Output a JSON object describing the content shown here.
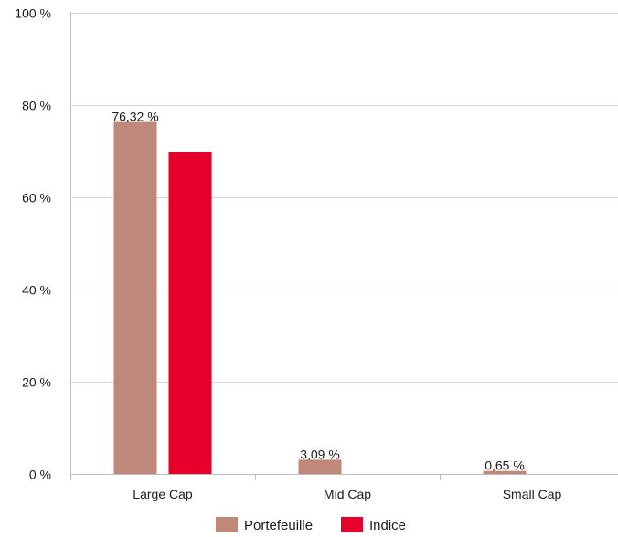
{
  "chart_data": {
    "type": "bar",
    "categories": [
      "Large Cap",
      "Mid Cap",
      "Small Cap"
    ],
    "series": [
      {
        "name": "Portefeuille",
        "color": "#C08878",
        "values": [
          76.32,
          3.09,
          0.65
        ],
        "labels": [
          "76,32 %",
          "3,09 %",
          "0,65 %"
        ]
      },
      {
        "name": "Indice",
        "color": "#E8002D",
        "values": [
          69.9,
          0,
          0
        ],
        "labels": [
          "",
          "",
          ""
        ]
      }
    ],
    "yticks": [
      0,
      20,
      40,
      60,
      80,
      100
    ],
    "ytick_labels": [
      "0 %",
      "20 %",
      "40 %",
      "60 %",
      "80 %",
      "100 %"
    ],
    "ylim": [
      0,
      100
    ],
    "grid": true,
    "legend": "bottom-center",
    "title": "",
    "xlabel": "",
    "ylabel": ""
  }
}
